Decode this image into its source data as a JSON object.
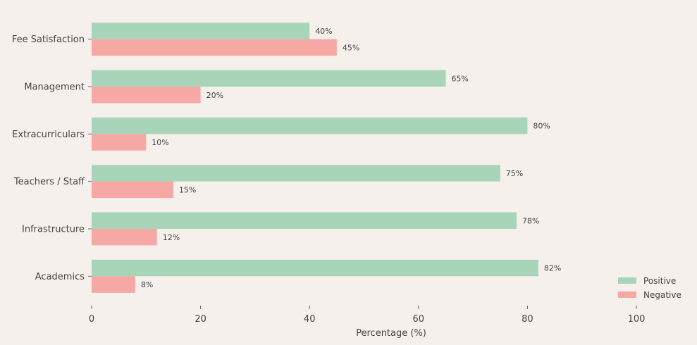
{
  "chart_data": {
    "type": "bar",
    "orientation": "horizontal",
    "categories": [
      "Academics",
      "Infrastructure",
      "Teachers / Staff",
      "Extracurriculars",
      "Management",
      "Fee Satisfaction"
    ],
    "series": [
      {
        "name": "Positive",
        "values": [
          82,
          78,
          75,
          80,
          65,
          40
        ],
        "color": "#a8d5ba"
      },
      {
        "name": "Negative",
        "values": [
          8,
          12,
          15,
          10,
          20,
          45
        ],
        "color": "#f5a8a4"
      }
    ],
    "data_labels": {
      "Positive": [
        "82%",
        "78%",
        "75%",
        "80%",
        "65%",
        "40%"
      ],
      "Negative": [
        "8%",
        "12%",
        "15%",
        "10%",
        "20%",
        "45%"
      ]
    },
    "title": "",
    "xlabel": "Percentage (%)",
    "ylabel": "",
    "xlim": [
      0,
      110
    ],
    "xticks": [
      0,
      20,
      40,
      60,
      80,
      100
    ],
    "xtick_labels": [
      "0",
      "20",
      "40",
      "60",
      "80",
      "100"
    ],
    "grid": false,
    "legend_position": "bottom-right"
  },
  "background": "#f5f0ec"
}
